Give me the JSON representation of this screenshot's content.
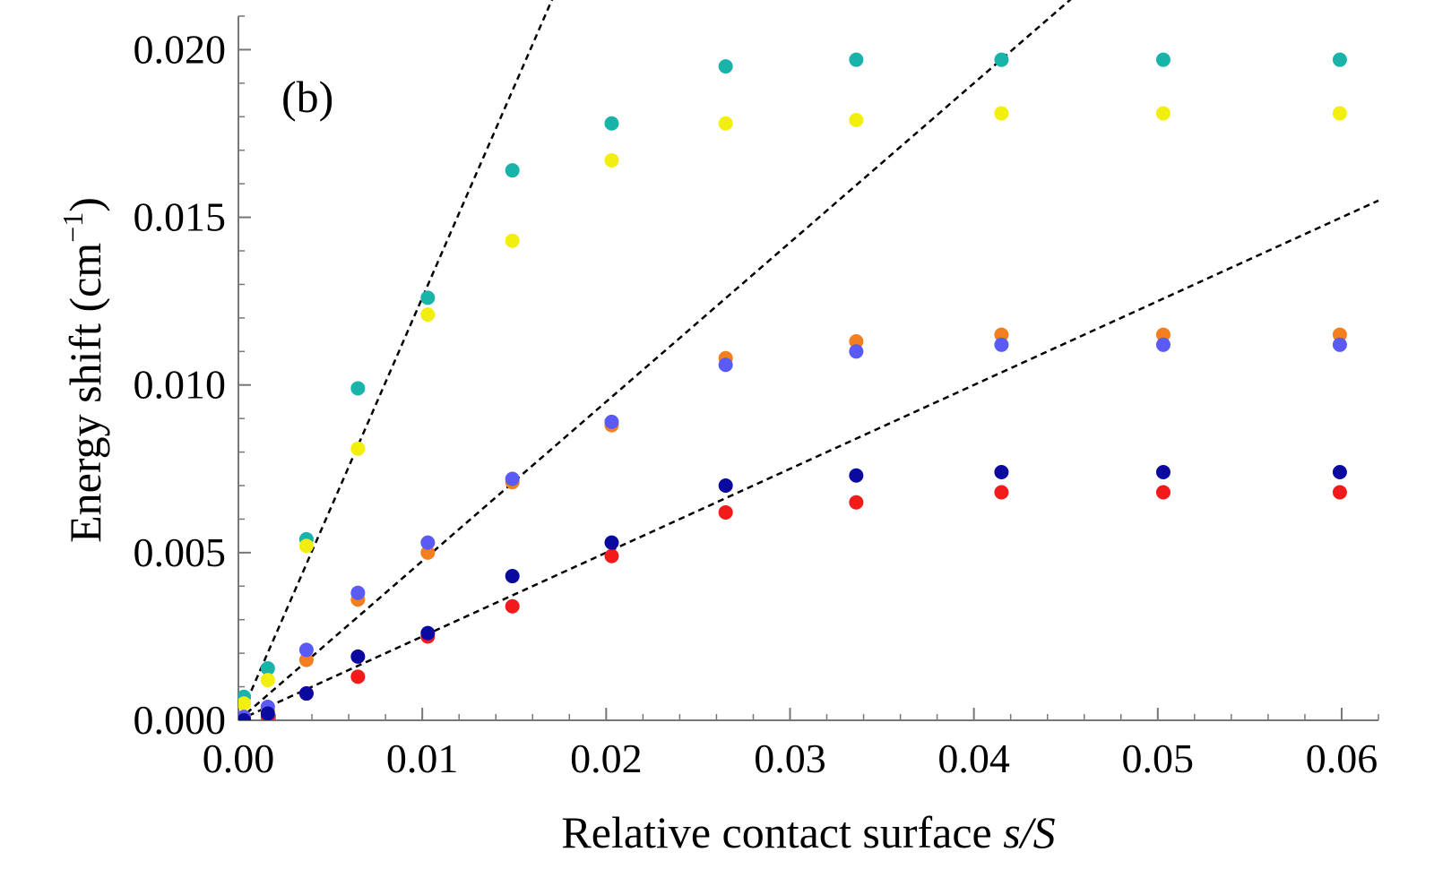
{
  "chart_data": {
    "type": "scatter",
    "panel_label": "(b)",
    "xlabel_prefix": "Relative contact surface ",
    "xlabel_var": "s/S",
    "ylabel_prefix": "Energy shift (cm",
    "ylabel_sup": "−1",
    "ylabel_suffix": ")",
    "xlim": [
      0.0,
      0.062
    ],
    "ylim": [
      0.0,
      0.021
    ],
    "x_ticks": [
      0.0,
      0.01,
      0.02,
      0.03,
      0.04,
      0.05,
      0.06
    ],
    "x_tick_labels": [
      "0.00",
      "0.01",
      "0.02",
      "0.03",
      "0.04",
      "0.05",
      "0.06"
    ],
    "y_ticks": [
      0.0,
      0.005,
      0.01,
      0.015,
      0.02
    ],
    "y_tick_labels": [
      "0.000",
      "0.005",
      "0.010",
      "0.015",
      "0.020"
    ],
    "x_minor_step": 0.002,
    "y_minor_step": 0.001,
    "x": [
      0.0003,
      0.0016,
      0.0037,
      0.0065,
      0.0103,
      0.0149,
      0.0203,
      0.0265,
      0.0336,
      0.0415,
      0.0503,
      0.0599
    ],
    "series": [
      {
        "name": "teal",
        "color": "#1ab3aa",
        "values": [
          0.0007,
          0.00155,
          0.0054,
          0.0099,
          0.0126,
          0.0164,
          0.0178,
          0.0195,
          0.0197,
          0.0197,
          0.0197,
          0.0197
        ]
      },
      {
        "name": "yellow",
        "color": "#f2ef0f",
        "values": [
          0.0005,
          0.0012,
          0.0052,
          0.0081,
          0.0121,
          0.0143,
          0.0167,
          0.0178,
          0.0179,
          0.0181,
          0.0181,
          0.0181
        ]
      },
      {
        "name": "orange",
        "color": "#f47f20",
        "values": [
          0.0001,
          0.0003,
          0.0018,
          0.0036,
          0.005,
          0.0071,
          0.0088,
          0.0108,
          0.0113,
          0.0115,
          0.0115,
          0.0115
        ]
      },
      {
        "name": "light-blue",
        "color": "#5a5af5",
        "values": [
          0.0001,
          0.0004,
          0.0021,
          0.0038,
          0.0053,
          0.0072,
          0.0089,
          0.0106,
          0.011,
          0.0112,
          0.0112,
          0.0112
        ]
      },
      {
        "name": "red",
        "color": "#f21a1a",
        "values": [
          0.0,
          0.0001,
          0.0008,
          0.0013,
          0.0025,
          0.0034,
          0.0049,
          0.0062,
          0.0065,
          0.0068,
          0.0068,
          0.0068
        ]
      },
      {
        "name": "dark-blue",
        "color": "#0a0aa0",
        "values": [
          0.0,
          0.0002,
          0.0008,
          0.0019,
          0.0026,
          0.0043,
          0.0053,
          0.007,
          0.0073,
          0.0074,
          0.0074,
          0.0074
        ]
      }
    ],
    "fit_lines": [
      {
        "name": "steep",
        "slope": 1.26
      },
      {
        "name": "medium",
        "slope": 0.475
      },
      {
        "name": "shallow",
        "slope": 0.25
      }
    ],
    "line_style": "dashed",
    "grid": false
  }
}
